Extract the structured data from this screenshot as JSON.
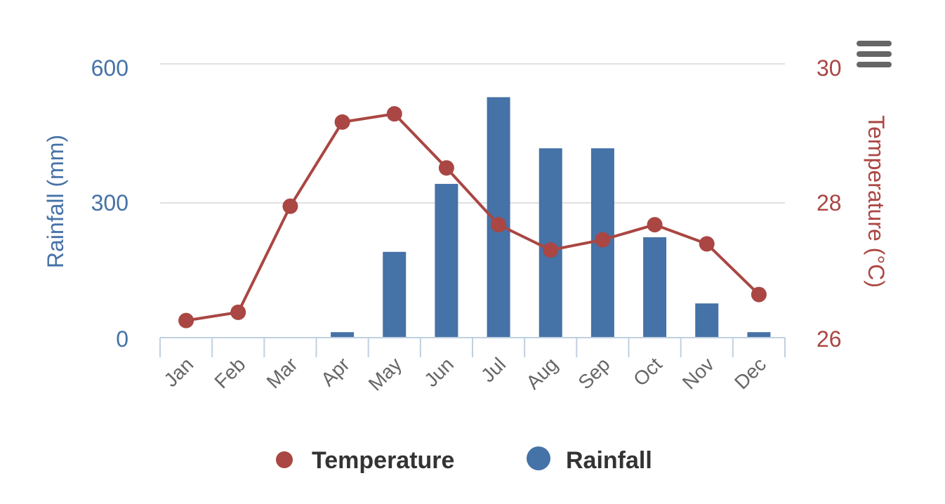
{
  "chart_data": {
    "type": "combo",
    "categories": [
      "Jan",
      "Feb",
      "Mar",
      "Apr",
      "May",
      "Jun",
      "Jul",
      "Aug",
      "Sep",
      "Oct",
      "Nov",
      "Dec"
    ],
    "series": [
      {
        "name": "Rainfall",
        "type": "bar",
        "axis": "left",
        "color": "#4572A7",
        "values": [
          0,
          0,
          0,
          12,
          188,
          337,
          527,
          415,
          415,
          220,
          75,
          12
        ]
      },
      {
        "name": "Temperature",
        "type": "line",
        "axis": "right",
        "color": "#AA4643",
        "values": [
          26.25,
          26.37,
          27.92,
          29.15,
          29.27,
          28.48,
          27.65,
          27.28,
          27.43,
          27.65,
          27.37,
          26.63
        ]
      }
    ],
    "y_left": {
      "title": "Rainfall (mm)",
      "ticks": [
        "0",
        "300",
        "600"
      ],
      "range": [
        0,
        600
      ],
      "color": "#4572A7"
    },
    "y_right": {
      "title": "Temperature (°C)",
      "ticks": [
        "26",
        "28",
        "30"
      ],
      "range": [
        26,
        30
      ],
      "color": "#AA4643"
    },
    "legend": {
      "position": "bottom",
      "items": [
        "Temperature",
        "Rainfall"
      ]
    },
    "grid": true
  },
  "menu": {
    "icon": "hamburger-menu-icon"
  }
}
